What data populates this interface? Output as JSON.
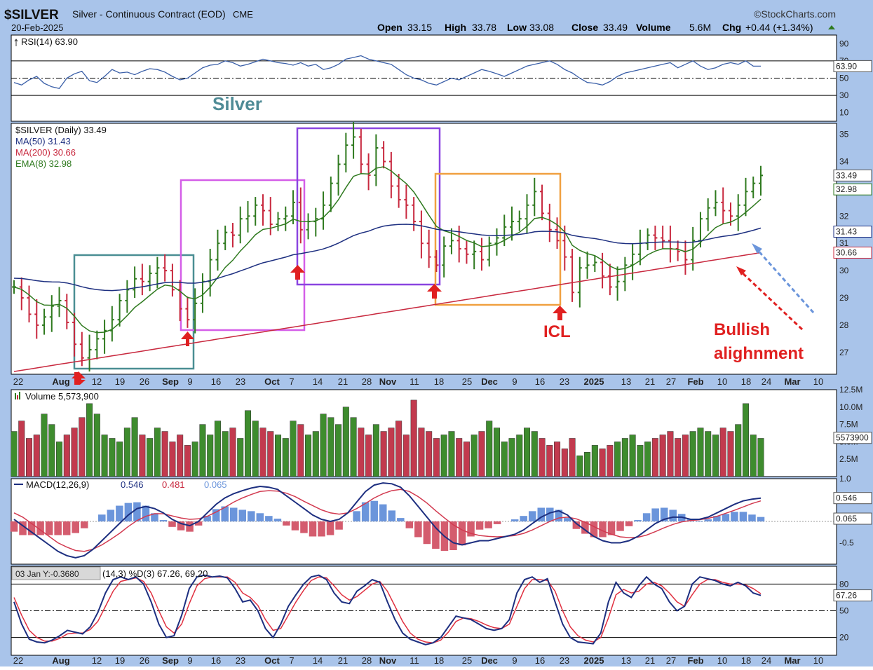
{
  "header": {
    "symbol": "$SILVER",
    "description": "Silver - Continuous Contract (EOD)",
    "exchange": "CME",
    "watermark": "©StockCharts.com",
    "date": "20-Feb-2025",
    "open_label": "Open",
    "open": "33.15",
    "high_label": "High",
    "high": "33.78",
    "low_label": "Low",
    "low": "33.08",
    "close_label": "Close",
    "close": "33.49",
    "volume_label": "Volume",
    "volume": "5.6M",
    "chg_label": "Chg",
    "chg": "+0.44 (+1.34%)"
  },
  "colors": {
    "background": "#a9c4ea",
    "up_bar": "#2f7a1f",
    "down_bar": "#c8283e",
    "ma50": "#1d2f80",
    "ma200": "#c8283e",
    "ema8": "#2f7a1f",
    "volume_up": "#3e8c2e",
    "volume_down": "#c23a4e",
    "macd_hist_pos": "#6b95db",
    "macd_hist_neg": "#d45c6e"
  },
  "chart_data": [
    {
      "panel": "rsi",
      "type": "line",
      "legend": "RSI(14) 63.90",
      "ylim": [
        0,
        100
      ],
      "ticks": [
        "90",
        "70",
        "50",
        "30",
        "10"
      ],
      "bounds": [
        70,
        30
      ],
      "current_label": "63.90",
      "values": [
        45,
        42,
        48,
        52,
        44,
        40,
        38,
        50,
        55,
        58,
        47,
        45,
        52,
        60,
        56,
        57,
        54,
        58,
        61,
        60,
        57,
        52,
        48,
        50,
        56,
        62,
        65,
        66,
        70,
        68,
        64,
        66,
        69,
        72,
        70,
        68,
        67,
        65,
        68,
        64,
        66,
        60,
        62,
        66,
        72,
        74,
        76,
        72,
        70,
        68,
        66,
        60,
        54,
        50,
        48,
        44,
        42,
        46,
        50,
        48,
        52,
        56,
        60,
        58,
        55,
        52,
        56,
        60,
        64,
        66,
        68,
        70,
        66,
        60,
        56,
        50,
        45,
        44,
        42,
        46,
        52,
        56,
        58,
        60,
        62,
        64,
        66,
        68,
        62,
        66,
        70,
        64,
        60,
        62,
        66,
        68,
        66,
        70,
        64,
        63.9
      ]
    },
    {
      "panel": "price",
      "type": "ohlc",
      "legend": [
        "$SILVER (Daily) 33.49",
        "MA(50) 31.43",
        "MA(200) 30.66",
        "EMA(8) 32.98"
      ],
      "title_annotation": "Silver",
      "ylim": [
        26.2,
        35.4
      ],
      "y_ticks": [
        35,
        34,
        33,
        32,
        31,
        30,
        29,
        28,
        27
      ],
      "current_labels": {
        "close": "33.49",
        "ema8": "32.98",
        "ma50": "31.43",
        "ma200": "30.66"
      },
      "annotations": [
        "ICL",
        "Bullish",
        "alighnment"
      ],
      "closes": [
        29.4,
        29.0,
        28.4,
        28.0,
        28.3,
        28.7,
        28.9,
        28.1,
        27.3,
        26.8,
        27.1,
        27.5,
        27.8,
        28.2,
        28.9,
        29.3,
        29.7,
        29.6,
        29.9,
        30.1,
        30.0,
        29.3,
        28.6,
        28.2,
        28.8,
        29.6,
        30.4,
        31.0,
        31.4,
        31.3,
        31.9,
        32.0,
        32.4,
        32.2,
        31.7,
        31.9,
        32.0,
        32.5,
        31.5,
        31.8,
        31.9,
        32.4,
        33.2,
        33.9,
        34.6,
        34.9,
        33.9,
        33.5,
        34.5,
        34.0,
        33.1,
        32.6,
        32.4,
        31.8,
        31.0,
        30.5,
        30.2,
        30.9,
        31.1,
        30.8,
        30.6,
        30.7,
        30.4,
        31.0,
        31.2,
        31.6,
        31.8,
        31.9,
        32.4,
        32.9,
        32.1,
        31.5,
        31.1,
        30.5,
        29.2,
        30.1,
        30.2,
        30.3,
        29.8,
        29.4,
        29.6,
        30.2,
        30.6,
        31.0,
        31.3,
        31.2,
        31.1,
        30.8,
        30.7,
        30.4,
        31.1,
        31.9,
        32.3,
        32.5,
        32.2,
        32.0,
        32.4,
        32.9,
        33.2,
        33.49
      ],
      "x_ticks": [
        "22",
        "Aug",
        "12",
        "19",
        "26",
        "Sep",
        "9",
        "16",
        "23",
        "Oct",
        "7",
        "14",
        "21",
        "28",
        "Nov",
        "11",
        "18",
        "25",
        "Dec",
        "9",
        "16",
        "23",
        "2025",
        "13",
        "21",
        "27",
        "Feb",
        "10",
        "18",
        "24",
        "Mar",
        "10"
      ]
    },
    {
      "panel": "volume",
      "type": "bar",
      "legend": "Volume 5,573,900",
      "ylim": [
        0,
        12.5
      ],
      "y_ticks": [
        "12.5M",
        "10.0M",
        "7.5M",
        "5.0M",
        "2.5M"
      ],
      "current_label": "5573900",
      "values": [
        6.5,
        8.0,
        5.5,
        6.0,
        9.0,
        7.5,
        5.0,
        6.0,
        7.0,
        8.5,
        10.5,
        9.0,
        6.0,
        5.5,
        5.0,
        7.0,
        8.5,
        6.0,
        5.5,
        7.0,
        6.5,
        5.0,
        6.0,
        4.5,
        5.0,
        7.5,
        6.0,
        8.0,
        6.5,
        7.0,
        5.5,
        9.5,
        8.0,
        7.0,
        6.5,
        6.0,
        5.5,
        8.0,
        7.5,
        6.0,
        6.5,
        9.0,
        8.5,
        7.5,
        10.0,
        8.5,
        7.0,
        6.0,
        7.5,
        6.5,
        7.0,
        8.0,
        6.0,
        11.0,
        7.0,
        6.5,
        5.5,
        6.0,
        6.5,
        5.5,
        5.0,
        6.0,
        6.5,
        8.0,
        7.0,
        5.0,
        5.5,
        6.0,
        7.0,
        6.5,
        5.5,
        4.5,
        5.0,
        4.0,
        5.5,
        3.0,
        3.5,
        4.5,
        4.0,
        4.5,
        5.0,
        5.5,
        6.0,
        4.5,
        5.0,
        5.5,
        6.0,
        6.5,
        5.5,
        6.0,
        6.5,
        7.0,
        6.5,
        6.0,
        7.0,
        6.5,
        7.5,
        10.5,
        6.0,
        5.5
      ]
    },
    {
      "panel": "macd",
      "type": "line",
      "legend_label": "MACD(12,26,9)",
      "macd": "0.546",
      "signal": "0.481",
      "hist": "0.065",
      "ylim": [
        -1.0,
        1.0
      ],
      "y_ticks": [
        "1.0",
        "0.5",
        "-0.5"
      ],
      "current_labels": [
        "0.546",
        "0.065"
      ],
      "macd_values": [
        0.05,
        -0.1,
        -0.25,
        -0.4,
        -0.55,
        -0.7,
        -0.8,
        -0.85,
        -0.8,
        -0.65,
        -0.45,
        -0.25,
        -0.05,
        0.15,
        0.3,
        0.35,
        0.3,
        0.2,
        0.05,
        -0.05,
        -0.1,
        0.0,
        0.2,
        0.4,
        0.55,
        0.65,
        0.72,
        0.78,
        0.82,
        0.8,
        0.75,
        0.6,
        0.45,
        0.3,
        0.15,
        0.05,
        0.0,
        0.05,
        0.2,
        0.45,
        0.7,
        0.85,
        0.9,
        0.88,
        0.8,
        0.6,
        0.35,
        0.1,
        -0.15,
        -0.35,
        -0.5,
        -0.55,
        -0.5,
        -0.45,
        -0.45,
        -0.4,
        -0.35,
        -0.3,
        -0.2,
        -0.05,
        0.1,
        0.2,
        0.25,
        0.15,
        -0.05,
        -0.2,
        -0.35,
        -0.45,
        -0.5,
        -0.5,
        -0.45,
        -0.35,
        -0.2,
        -0.05,
        0.05,
        0.1,
        0.1,
        0.05,
        0.05,
        0.1,
        0.2,
        0.3,
        0.4,
        0.48,
        0.52,
        0.546
      ],
      "signal_values": [
        0.2,
        0.1,
        -0.05,
        -0.2,
        -0.35,
        -0.5,
        -0.6,
        -0.68,
        -0.7,
        -0.65,
        -0.55,
        -0.42,
        -0.28,
        -0.12,
        0.02,
        0.12,
        0.18,
        0.18,
        0.13,
        0.08,
        0.05,
        0.06,
        0.12,
        0.22,
        0.33,
        0.45,
        0.55,
        0.63,
        0.7,
        0.72,
        0.71,
        0.66,
        0.58,
        0.47,
        0.37,
        0.27,
        0.2,
        0.17,
        0.2,
        0.3,
        0.42,
        0.55,
        0.65,
        0.72,
        0.75,
        0.7,
        0.58,
        0.43,
        0.25,
        0.08,
        -0.08,
        -0.2,
        -0.28,
        -0.33,
        -0.35,
        -0.36,
        -0.35,
        -0.33,
        -0.28,
        -0.2,
        -0.1,
        0.0,
        0.08,
        0.1,
        0.06,
        -0.02,
        -0.12,
        -0.22,
        -0.3,
        -0.36,
        -0.38,
        -0.37,
        -0.32,
        -0.24,
        -0.15,
        -0.07,
        -0.01,
        0.02,
        0.04,
        0.07,
        0.12,
        0.19,
        0.26,
        0.34,
        0.42,
        0.481
      ]
    },
    {
      "panel": "stochastic",
      "type": "line",
      "legend": "(14,3) %D(3) 67.26, 69.20",
      "tooltip": "03 Jan Y:-0.3680",
      "ylim": [
        0,
        100
      ],
      "y_ticks": [
        "80",
        "50",
        "20"
      ],
      "current_label": "67.26",
      "k_values": [
        60,
        35,
        18,
        15,
        14,
        17,
        22,
        28,
        26,
        24,
        32,
        48,
        70,
        85,
        88,
        85,
        88,
        80,
        60,
        35,
        20,
        22,
        45,
        75,
        88,
        90,
        88,
        89,
        87,
        75,
        60,
        62,
        50,
        30,
        20,
        35,
        55,
        68,
        80,
        88,
        90,
        85,
        70,
        60,
        58,
        72,
        78,
        85,
        82,
        60,
        40,
        25,
        18,
        15,
        12,
        14,
        20,
        32,
        44,
        42,
        40,
        35,
        30,
        28,
        30,
        40,
        70,
        85,
        88,
        82,
        86,
        60,
        35,
        20,
        15,
        14,
        13,
        25,
        60,
        82,
        70,
        65,
        78,
        88,
        80,
        75,
        60,
        50,
        55,
        80,
        88,
        86,
        84,
        80,
        78,
        82,
        78,
        70,
        67.26
      ],
      "d_values": [
        65,
        45,
        28,
        20,
        16,
        16,
        19,
        24,
        25,
        25,
        29,
        38,
        55,
        72,
        83,
        85,
        87,
        83,
        70,
        50,
        32,
        25,
        35,
        58,
        78,
        86,
        88,
        88,
        88,
        82,
        70,
        65,
        56,
        40,
        28,
        30,
        45,
        60,
        73,
        84,
        88,
        87,
        78,
        68,
        62,
        66,
        73,
        80,
        83,
        72,
        55,
        38,
        25,
        18,
        15,
        14,
        17,
        26,
        38,
        42,
        41,
        38,
        34,
        31,
        30,
        35,
        55,
        75,
        85,
        85,
        84,
        72,
        50,
        32,
        22,
        17,
        15,
        20,
        42,
        68,
        74,
        70,
        72,
        80,
        82,
        78,
        70,
        60,
        55,
        68,
        80,
        85,
        85,
        82,
        80,
        80,
        79,
        75,
        69.2
      ]
    }
  ]
}
